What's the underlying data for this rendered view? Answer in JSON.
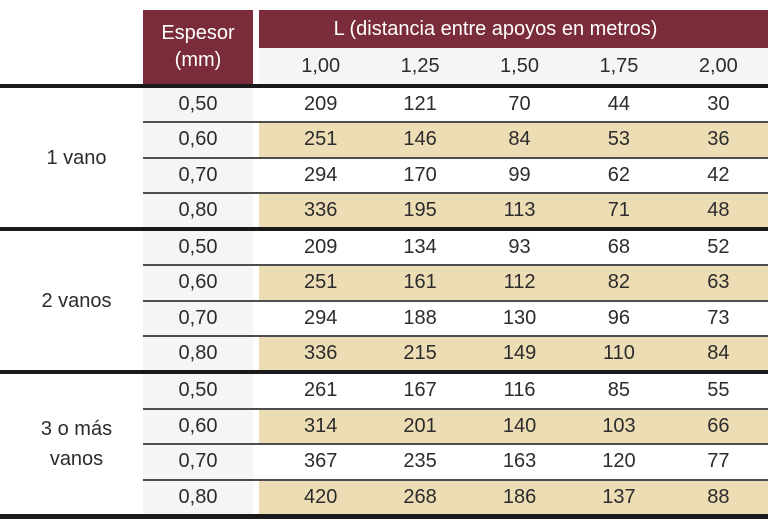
{
  "header": {
    "espesor_line1": "Espesor",
    "espesor_line2": "(mm)",
    "l_title": "L (distancia entre apoyos en metros)",
    "columns": [
      "1,00",
      "1,25",
      "1,50",
      "1,75",
      "2,00"
    ]
  },
  "sections": [
    {
      "label1": "1 vano",
      "label2": "",
      "rows": [
        {
          "espesor": "0,50",
          "v": [
            "209",
            "121",
            "70",
            "44",
            "30"
          ]
        },
        {
          "espesor": "0,60",
          "v": [
            "251",
            "146",
            "84",
            "53",
            "36"
          ]
        },
        {
          "espesor": "0,70",
          "v": [
            "294",
            "170",
            "99",
            "62",
            "42"
          ]
        },
        {
          "espesor": "0,80",
          "v": [
            "336",
            "195",
            "113",
            "71",
            "48"
          ]
        }
      ]
    },
    {
      "label1": "2 vanos",
      "label2": "",
      "rows": [
        {
          "espesor": "0,50",
          "v": [
            "209",
            "134",
            "93",
            "68",
            "52"
          ]
        },
        {
          "espesor": "0,60",
          "v": [
            "251",
            "161",
            "112",
            "82",
            "63"
          ]
        },
        {
          "espesor": "0,70",
          "v": [
            "294",
            "188",
            "130",
            "96",
            "73"
          ]
        },
        {
          "espesor": "0,80",
          "v": [
            "336",
            "215",
            "149",
            "110",
            "84"
          ]
        }
      ]
    },
    {
      "label1": "3 o más",
      "label2": "vanos",
      "rows": [
        {
          "espesor": "0,50",
          "v": [
            "261",
            "167",
            "116",
            "85",
            "55"
          ]
        },
        {
          "espesor": "0,60",
          "v": [
            "314",
            "201",
            "140",
            "103",
            "66"
          ]
        },
        {
          "espesor": "0,70",
          "v": [
            "367",
            "235",
            "163",
            "120",
            "77"
          ]
        },
        {
          "espesor": "0,80",
          "v": [
            "420",
            "268",
            "186",
            "137",
            "88"
          ]
        }
      ]
    }
  ],
  "colors": {
    "maroon": "#7B2C3B",
    "beige": "#EDDDB4",
    "light_gray": "#F5F5F6",
    "section_line": "#1A1A1A",
    "row_line": "#4E4E4E",
    "text": "#2C2C2C"
  },
  "chart_data": {
    "type": "table",
    "title": "L (distancia entre apoyos en metros)",
    "row_header": "Espesor (mm)",
    "columns_L_m": [
      1.0,
      1.25,
      1.5,
      1.75,
      2.0
    ],
    "groups": [
      {
        "name": "1 vano",
        "espesor_mm": [
          0.5,
          0.6,
          0.7,
          0.8
        ],
        "values": [
          [
            209,
            121,
            70,
            44,
            30
          ],
          [
            251,
            146,
            84,
            53,
            36
          ],
          [
            294,
            170,
            99,
            62,
            42
          ],
          [
            336,
            195,
            113,
            71,
            48
          ]
        ]
      },
      {
        "name": "2 vanos",
        "espesor_mm": [
          0.5,
          0.6,
          0.7,
          0.8
        ],
        "values": [
          [
            209,
            134,
            93,
            68,
            52
          ],
          [
            251,
            161,
            112,
            82,
            63
          ],
          [
            294,
            188,
            130,
            96,
            73
          ],
          [
            336,
            215,
            149,
            110,
            84
          ]
        ]
      },
      {
        "name": "3 o más vanos",
        "espesor_mm": [
          0.5,
          0.6,
          0.7,
          0.8
        ],
        "values": [
          [
            261,
            167,
            116,
            85,
            55
          ],
          [
            314,
            201,
            140,
            103,
            66
          ],
          [
            367,
            235,
            163,
            120,
            77
          ],
          [
            420,
            268,
            186,
            137,
            88
          ]
        ]
      }
    ]
  }
}
